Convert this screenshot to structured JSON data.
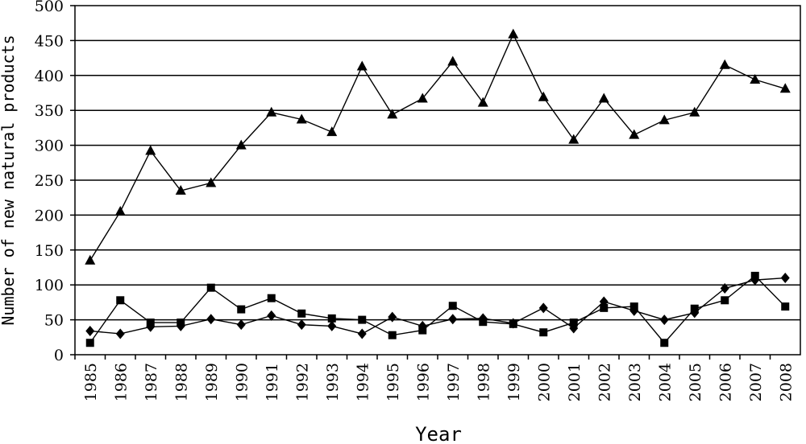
{
  "chart_data": {
    "type": "line",
    "title": "",
    "xlabel": "Year",
    "ylabel": "Number of new natural products",
    "ylim": [
      0,
      500
    ],
    "yticks": [
      0,
      50,
      100,
      150,
      200,
      250,
      300,
      350,
      400,
      450,
      500
    ],
    "grid": "horizontal",
    "categories": [
      "1985",
      "1986",
      "1987",
      "1988",
      "1989",
      "1990",
      "1991",
      "1992",
      "1993",
      "1994",
      "1995",
      "1996",
      "1997",
      "1998",
      "1999",
      "2000",
      "2001",
      "2002",
      "2003",
      "2004",
      "2005",
      "2006",
      "2007",
      "2008"
    ],
    "series": [
      {
        "marker": "triangle",
        "values": [
          135,
          205,
          292,
          235,
          246,
          300,
          347,
          337,
          319,
          413,
          344,
          367,
          420,
          361,
          459,
          369,
          308,
          367,
          315,
          336,
          347,
          415,
          394,
          381
        ]
      },
      {
        "marker": "square",
        "values": [
          17,
          78,
          46,
          46,
          96,
          65,
          81,
          59,
          52,
          50,
          28,
          35,
          70,
          47,
          44,
          32,
          46,
          67,
          69,
          17,
          66,
          78,
          113,
          69
        ]
      },
      {
        "marker": "diamond",
        "values": [
          34,
          30,
          40,
          41,
          51,
          43,
          56,
          43,
          41,
          30,
          54,
          41,
          51,
          52,
          45,
          67,
          38,
          76,
          63,
          50,
          60,
          95,
          107,
          110
        ]
      }
    ]
  }
}
